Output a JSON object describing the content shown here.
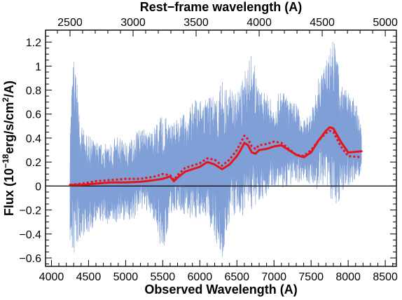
{
  "chart_data": {
    "type": "line",
    "title": "",
    "xlabel": "Observed Wavelength (A)",
    "x2label": "Rest−frame wavelength (A)",
    "ylabel_html": "Flux (10<sup>−18</sup>erg/s/cm<sup>2</sup>/A)",
    "ylabel": "Flux (10^-18 erg/s/cm^2/A)",
    "xlim": [
      3920,
      8650
    ],
    "ylim": [
      -0.67,
      1.3
    ],
    "x2_to_x_factor": 1.7,
    "xticks": [
      4000,
      4500,
      5000,
      5500,
      6000,
      6500,
      7000,
      7500,
      8000,
      8500
    ],
    "xtick_labels": [
      "4000",
      "4500",
      "5000",
      "5500",
      "6000",
      "6500",
      "7000",
      "7500",
      "8000",
      "8500"
    ],
    "x2ticks": [
      2500,
      3000,
      3500,
      4000,
      4500,
      5000
    ],
    "x2tick_labels": [
      "2500",
      "3000",
      "3500",
      "4000",
      "4500",
      "5000"
    ],
    "yticks": [
      -0.6,
      -0.4,
      -0.2,
      0,
      0.2,
      0.4,
      0.6,
      0.8,
      1,
      1.2
    ],
    "ytick_labels": [
      "−0.6",
      "−0.4",
      "−0.2",
      "0",
      "0.2",
      "0.4",
      "0.6",
      "0.8",
      "1",
      "1.2"
    ],
    "zero_line": 0,
    "grid": false,
    "colors": {
      "spectrum": "#7f9fd6",
      "model": "#e8141c",
      "zero_line": "#000000",
      "axes": "#000000"
    },
    "series": [
      {
        "style": "band",
        "envelope": {
          "x": [
            4250,
            4300,
            4400,
            4500,
            4600,
            4700,
            4800,
            4900,
            5000,
            5100,
            5200,
            5300,
            5400,
            5500,
            5600,
            5700,
            5800,
            5900,
            6000,
            6100,
            6200,
            6300,
            6400,
            6500,
            6600,
            6700,
            6800,
            6900,
            7000,
            7100,
            7200,
            7300,
            7400,
            7500,
            7600,
            7700,
            7800,
            7900,
            8000,
            8100,
            8180
          ],
          "upper": [
            0.55,
            1.15,
            0.5,
            0.42,
            0.38,
            0.35,
            0.37,
            0.42,
            0.36,
            0.42,
            0.5,
            0.45,
            0.52,
            0.6,
            0.55,
            0.55,
            0.62,
            0.7,
            0.76,
            0.72,
            0.78,
            0.88,
            0.82,
            0.78,
            0.95,
            1.12,
            0.82,
            0.76,
            0.7,
            0.82,
            0.72,
            0.7,
            0.55,
            0.62,
            0.9,
            1.05,
            1.28,
            0.88,
            0.78,
            0.72,
            0.48
          ],
          "lower": [
            -0.5,
            -0.65,
            -0.42,
            -0.4,
            -0.32,
            -0.3,
            -0.35,
            -0.3,
            -0.28,
            -0.3,
            -0.2,
            -0.22,
            -0.3,
            -0.62,
            -0.25,
            -0.2,
            -0.25,
            -0.3,
            -0.25,
            -0.28,
            -0.45,
            -0.67,
            -0.3,
            -0.25,
            -0.25,
            -0.2,
            -0.12,
            -0.1,
            0.0,
            -0.05,
            0.0,
            0.02,
            0.05,
            0.0,
            -0.05,
            0.02,
            -0.2,
            -0.1,
            0.0,
            0.05,
            0.1
          ]
        }
      },
      {
        "style": "solid",
        "x": [
          4250,
          4400,
          4600,
          4800,
          5000,
          5200,
          5400,
          5500,
          5600,
          5650,
          5700,
          5800,
          5900,
          6000,
          6100,
          6200,
          6300,
          6400,
          6500,
          6550,
          6600,
          6650,
          6700,
          6750,
          6800,
          6900,
          7000,
          7100,
          7200,
          7300,
          7400,
          7500,
          7600,
          7700,
          7750,
          7800,
          7900,
          8000,
          8100,
          8180
        ],
        "y": [
          0.01,
          0.01,
          0.02,
          0.03,
          0.03,
          0.035,
          0.05,
          0.06,
          0.08,
          0.04,
          0.07,
          0.12,
          0.14,
          0.16,
          0.2,
          0.18,
          0.14,
          0.18,
          0.25,
          0.3,
          0.36,
          0.34,
          0.28,
          0.27,
          0.3,
          0.31,
          0.33,
          0.34,
          0.3,
          0.26,
          0.24,
          0.28,
          0.38,
          0.46,
          0.49,
          0.48,
          0.37,
          0.28,
          0.285,
          0.29
        ]
      },
      {
        "style": "dotted",
        "x": [
          4250,
          4400,
          4600,
          4800,
          5000,
          5200,
          5400,
          5500,
          5600,
          5650,
          5700,
          5800,
          5900,
          6000,
          6100,
          6200,
          6300,
          6400,
          6500,
          6550,
          6600,
          6650,
          6700,
          6750,
          6800,
          6900,
          7000,
          7100,
          7200,
          7300,
          7400,
          7500,
          7600,
          7700,
          7750,
          7800,
          7900,
          8000,
          8100,
          8180
        ],
        "y": [
          0.01,
          0.02,
          0.04,
          0.05,
          0.06,
          0.06,
          0.08,
          0.1,
          0.09,
          0.05,
          0.09,
          0.15,
          0.17,
          0.19,
          0.23,
          0.22,
          0.17,
          0.22,
          0.3,
          0.36,
          0.42,
          0.39,
          0.33,
          0.31,
          0.34,
          0.35,
          0.37,
          0.36,
          0.31,
          0.26,
          0.25,
          0.3,
          0.38,
          0.44,
          0.46,
          0.45,
          0.33,
          0.25,
          0.245,
          0.24
        ]
      }
    ]
  }
}
